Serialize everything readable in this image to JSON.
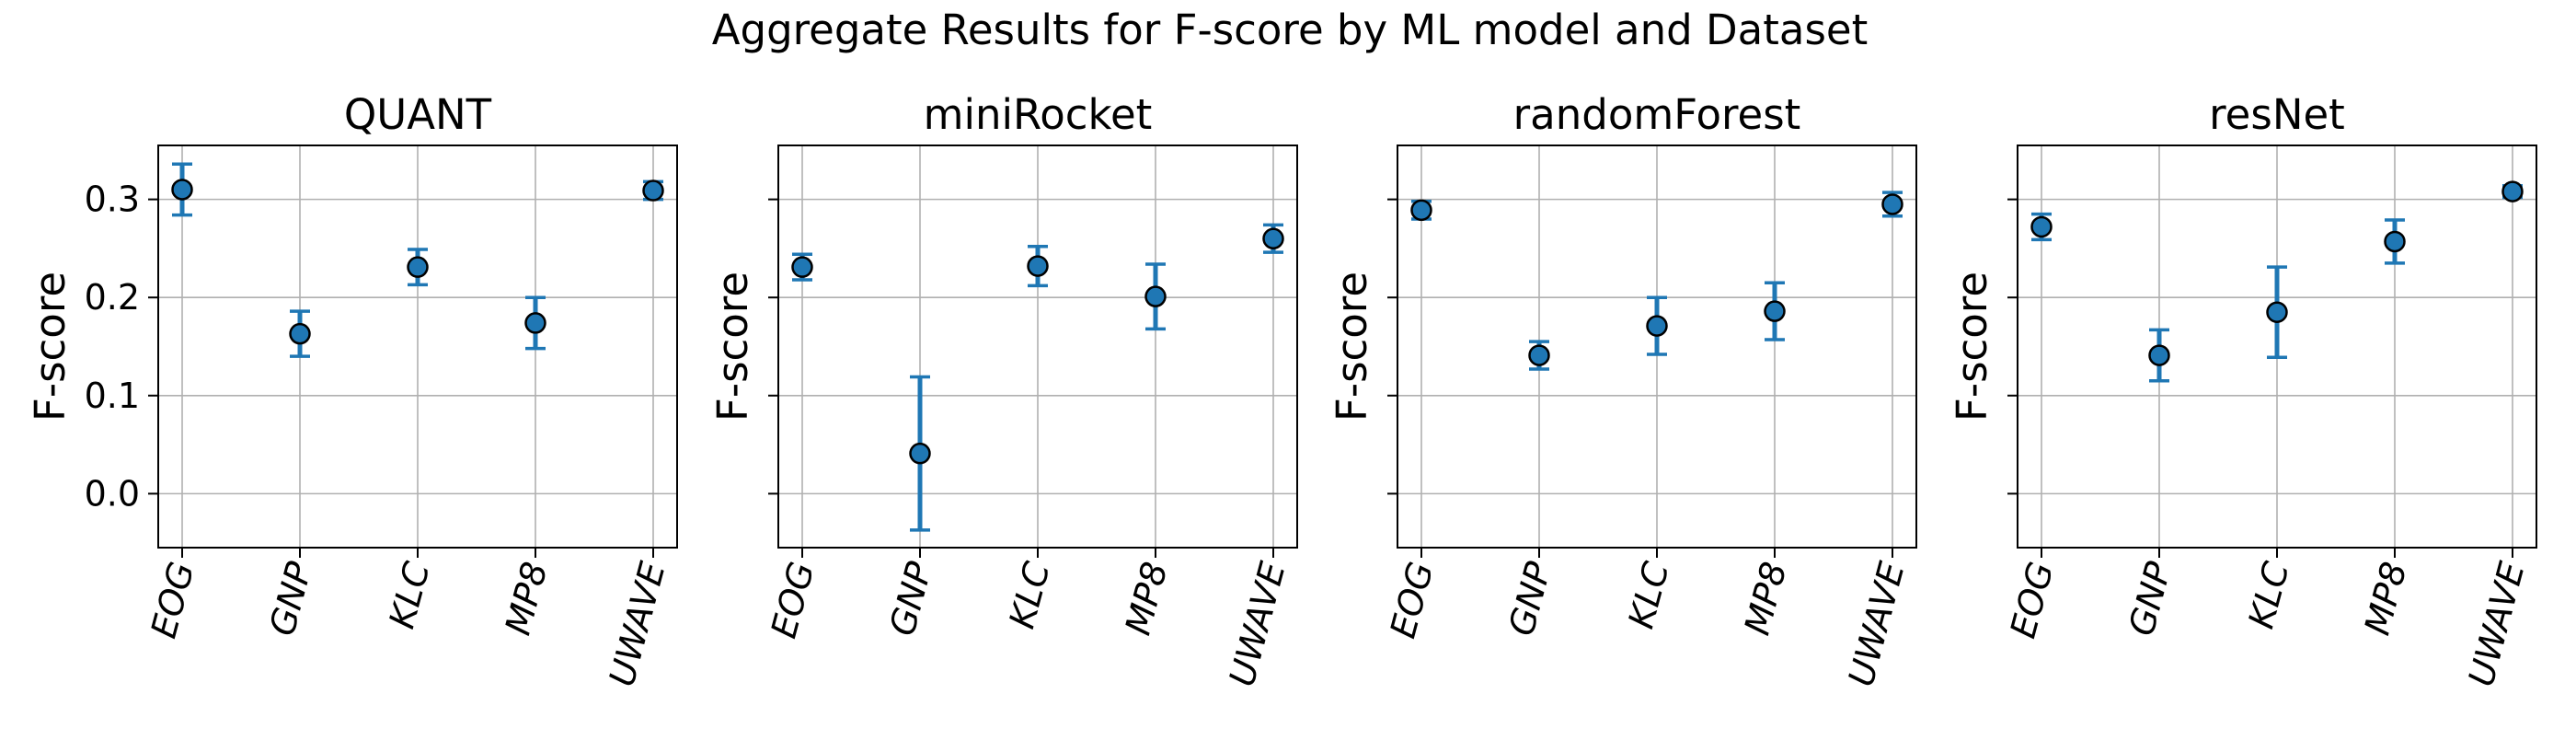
{
  "chart_data": [
    {
      "type": "scatter",
      "title": "QUANT",
      "ylabel": "F-score",
      "categories": [
        "EOG",
        "GNP",
        "KLC",
        "MP8",
        "UWAVE"
      ],
      "values": [
        0.31,
        0.163,
        0.231,
        0.174,
        0.309
      ],
      "error": [
        0.026,
        0.023,
        0.018,
        0.026,
        0.009
      ],
      "ylim": [
        -0.055,
        0.355
      ],
      "yticks": [
        0.0,
        0.1,
        0.2,
        0.3
      ],
      "ytick_labels": [
        "0.0",
        "0.1",
        "0.2",
        "0.3"
      ],
      "grid": true
    },
    {
      "type": "scatter",
      "title": "miniRocket",
      "ylabel": "F-score",
      "categories": [
        "EOG",
        "GNP",
        "KLC",
        "MP8",
        "UWAVE"
      ],
      "values": [
        0.231,
        0.041,
        0.232,
        0.201,
        0.26
      ],
      "error": [
        0.013,
        0.078,
        0.02,
        0.033,
        0.014
      ],
      "ylim": [
        -0.055,
        0.355
      ],
      "yticks": [
        0.0,
        0.1,
        0.2,
        0.3
      ],
      "ytick_labels": [
        "",
        "",
        "",
        ""
      ],
      "grid": true
    },
    {
      "type": "scatter",
      "title": "randomForest",
      "ylabel": "F-score",
      "categories": [
        "EOG",
        "GNP",
        "KLC",
        "MP8",
        "UWAVE"
      ],
      "values": [
        0.289,
        0.141,
        0.171,
        0.186,
        0.295
      ],
      "error": [
        0.009,
        0.014,
        0.029,
        0.029,
        0.012
      ],
      "ylim": [
        -0.055,
        0.355
      ],
      "yticks": [
        0.0,
        0.1,
        0.2,
        0.3
      ],
      "ytick_labels": [
        "",
        "",
        "",
        ""
      ],
      "grid": true
    },
    {
      "type": "scatter",
      "title": "resNet",
      "ylabel": "F-score",
      "categories": [
        "EOG",
        "GNP",
        "KLC",
        "MP8",
        "UWAVE"
      ],
      "values": [
        0.272,
        0.141,
        0.185,
        0.257,
        0.308
      ],
      "error": [
        0.013,
        0.026,
        0.046,
        0.022,
        0.006
      ],
      "ylim": [
        -0.055,
        0.355
      ],
      "yticks": [
        0.0,
        0.1,
        0.2,
        0.3
      ],
      "ytick_labels": [
        "",
        "",
        "",
        ""
      ],
      "grid": true
    }
  ],
  "figure": {
    "title": "Aggregate Results for F-score by ML model and Dataset"
  },
  "colors": {
    "marker": "#1f77b4",
    "marker_edge": "#000000",
    "errorbar": "#1f77b4",
    "grid": "#b0b0b0",
    "axes": "#000000"
  }
}
